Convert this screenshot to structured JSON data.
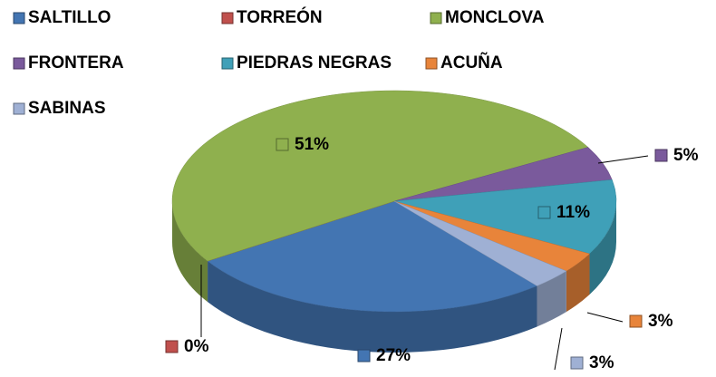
{
  "chart_data": {
    "type": "pie3d",
    "categories": [
      "SALTILLO",
      "TORREÓN",
      "MONCLOVA",
      "FRONTERA",
      "PIEDRAS NEGRAS",
      "ACUÑA",
      "SABINAS"
    ],
    "values": [
      27,
      0,
      51,
      5,
      11,
      3,
      3
    ],
    "value_labels": [
      "27%",
      "0%",
      "51%",
      "5%",
      "11%",
      "3%",
      "3%"
    ],
    "colors": [
      "#4375b2",
      "#c0504d",
      "#8fb04e",
      "#7a5a9c",
      "#3fa0b8",
      "#e8843a",
      "#9fb0d4"
    ],
    "legend": "top"
  }
}
